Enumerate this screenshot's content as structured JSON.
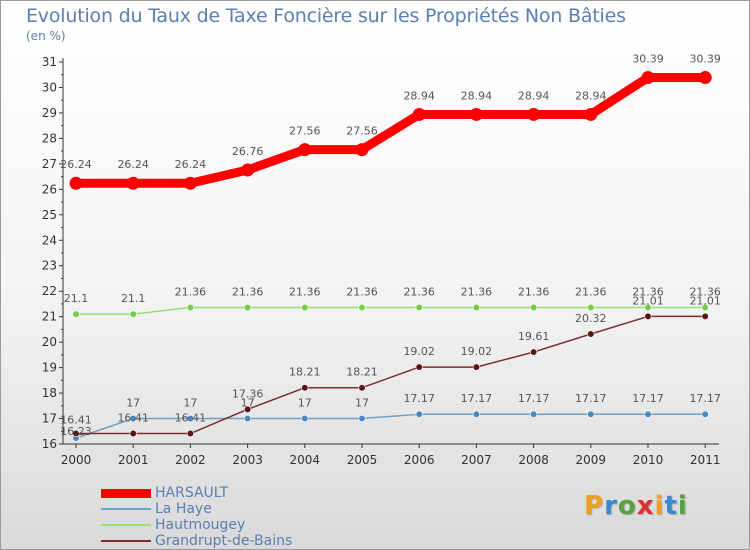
{
  "chart_data": {
    "type": "line",
    "title": "Evolution du Taux de Taxe Foncière sur les Propriétés Non Bâties",
    "subtitle": "(en %)",
    "x": [
      "2000",
      "2001",
      "2002",
      "2003",
      "2004",
      "2005",
      "2006",
      "2007",
      "2008",
      "2009",
      "2010",
      "2011"
    ],
    "ylim": [
      16,
      31
    ],
    "yticks": [
      "16",
      "17",
      "18",
      "19",
      "20",
      "21",
      "22",
      "23",
      "24",
      "25",
      "26",
      "27",
      "28",
      "29",
      "30",
      "31"
    ],
    "grid": false,
    "legend_position": "bottom-left",
    "series": [
      {
        "name": "HARSAULT",
        "color": "#ff0000",
        "values": [
          26.24,
          26.24,
          26.24,
          26.76,
          27.56,
          27.56,
          28.94,
          28.94,
          28.94,
          28.94,
          30.39,
          30.39
        ],
        "labels": [
          "26.24",
          "26.24",
          "26.24",
          "26.76",
          "27.56",
          "27.56",
          "28.94",
          "28.94",
          "28.94",
          "28.94",
          "30.39",
          "30.39"
        ]
      },
      {
        "name": "La Haye",
        "color": "#6fa0c8",
        "marker": "#4a86c0",
        "values": [
          16.23,
          17,
          17,
          17,
          17,
          17,
          17.17,
          17.17,
          17.17,
          17.17,
          17.17,
          17.17
        ],
        "labels": [
          "16.23",
          "17",
          "17",
          "17",
          "17",
          "17",
          "17.17",
          "17.17",
          "17.17",
          "17.17",
          "17.17",
          "17.17"
        ]
      },
      {
        "name": "Hautmougey",
        "color": "#99dd77",
        "marker": "#77cc44",
        "values": [
          21.1,
          21.1,
          21.36,
          21.36,
          21.36,
          21.36,
          21.36,
          21.36,
          21.36,
          21.36,
          21.36,
          21.36
        ],
        "labels": [
          "21.1",
          "21.1",
          "21.36",
          "21.36",
          "21.36",
          "21.36",
          "21.36",
          "21.36",
          "21.36",
          "21.36",
          "21.36",
          "21.36"
        ]
      },
      {
        "name": "Grandrupt-de-Bains",
        "color": "#7a2e2e",
        "marker": "#5c1414",
        "values": [
          16.41,
          16.41,
          16.41,
          17.36,
          18.21,
          18.21,
          19.02,
          19.02,
          19.61,
          20.32,
          21.01,
          21.01
        ],
        "labels": [
          "16.41",
          "16.41",
          "16.41",
          "17.36",
          "18.21",
          "18.21",
          "19.02",
          "19.02",
          "19.61",
          "20.32",
          "21.01",
          "21.01"
        ]
      }
    ]
  },
  "logo": {
    "letters": [
      "P",
      "r",
      "o",
      "x",
      "i",
      "t",
      "i"
    ],
    "colors": [
      "#f0a020",
      "#3a8ad0",
      "#5aa040",
      "#e03030",
      "#f0a020",
      "#3a8ad0",
      "#5aa040"
    ]
  }
}
